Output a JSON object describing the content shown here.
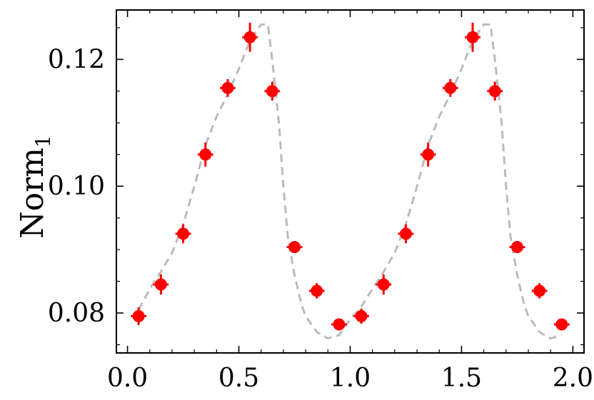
{
  "chart_data": {
    "type": "scatter",
    "title": "",
    "xlabel": "",
    "ylabel": {
      "main": "Norm",
      "sub": "1"
    },
    "xlim": [
      -0.05,
      2.05
    ],
    "ylim": [
      0.0737,
      0.1278
    ],
    "x_ticks": [
      0.0,
      0.5,
      1.0,
      1.5,
      2.0
    ],
    "x_tick_labels": [
      "0.0",
      "0.5",
      "1.0",
      "1.5",
      "2.0"
    ],
    "x_minor_step": 0.1,
    "y_ticks": [
      0.08,
      0.1,
      0.12
    ],
    "y_tick_labels": [
      "0.08",
      "0.10",
      "0.12"
    ],
    "y_minor_step": 0.005,
    "grid": false,
    "legend": "none",
    "series": [
      {
        "kind": "errorbar",
        "color": "#ff0000",
        "x": [
          0.05,
          0.15,
          0.25,
          0.35,
          0.45,
          0.55,
          0.65,
          0.75,
          0.85,
          0.95,
          1.05,
          1.15,
          1.25,
          1.35,
          1.45,
          1.55,
          1.65,
          1.75,
          1.85,
          1.95
        ],
        "y": [
          0.0795,
          0.0845,
          0.0925,
          0.105,
          0.1155,
          0.1235,
          0.115,
          0.0904,
          0.0835,
          0.0782,
          0.0795,
          0.0845,
          0.0925,
          0.105,
          0.1155,
          0.1235,
          0.115,
          0.0904,
          0.0835,
          0.0782
        ],
        "xerr": 0.035,
        "yerr": [
          0.0014,
          0.0016,
          0.0015,
          0.0019,
          0.0014,
          0.0023,
          0.0015,
          0.0009,
          0.0012,
          0.0009,
          0.0012,
          0.0016,
          0.0015,
          0.0019,
          0.0014,
          0.0023,
          0.0015,
          0.0009,
          0.0012,
          0.0009
        ]
      },
      {
        "kind": "dashed-line",
        "color": "#bbbbbb",
        "x": [
          0.05,
          0.1,
          0.15,
          0.2,
          0.25,
          0.3,
          0.35,
          0.4,
          0.45,
          0.5,
          0.55,
          0.6,
          0.63,
          0.65,
          0.68,
          0.7,
          0.72,
          0.75,
          0.78,
          0.8,
          0.85,
          0.9,
          0.95,
          1.0,
          1.05,
          1.1,
          1.15,
          1.2,
          1.25,
          1.3,
          1.35,
          1.4,
          1.45,
          1.5,
          1.55,
          1.6,
          1.63,
          1.65,
          1.68,
          1.7,
          1.72,
          1.75,
          1.78,
          1.8,
          1.85,
          1.9,
          1.95
        ],
        "y": [
          0.0805,
          0.0838,
          0.0865,
          0.0895,
          0.094,
          0.1,
          0.1065,
          0.111,
          0.1145,
          0.1185,
          0.123,
          0.1255,
          0.1255,
          0.12,
          0.11,
          0.1,
          0.092,
          0.086,
          0.0815,
          0.0795,
          0.077,
          0.076,
          0.0765,
          0.079,
          0.081,
          0.0838,
          0.0865,
          0.0895,
          0.094,
          0.1,
          0.1065,
          0.111,
          0.1145,
          0.1185,
          0.123,
          0.1255,
          0.1255,
          0.12,
          0.11,
          0.1,
          0.092,
          0.086,
          0.0815,
          0.0795,
          0.077,
          0.076,
          0.0765
        ]
      }
    ]
  }
}
